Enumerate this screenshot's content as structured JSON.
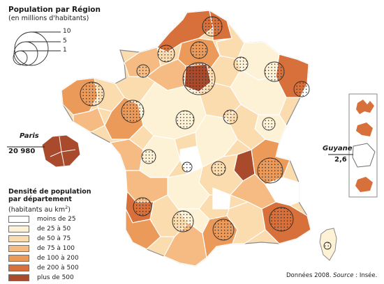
{
  "legend_population": {
    "title": "Population par Région",
    "subtitle": "(en millions d'habitants)",
    "sizes": [
      "10",
      "5",
      "1"
    ]
  },
  "legend_density": {
    "title_line1": "Densité de population",
    "title_line2": "par département",
    "subtitle_prefix": "(habitants au km",
    "subtitle_sup": "2",
    "subtitle_suffix": ")",
    "classes": [
      {
        "label": "moins de 25",
        "color": "#ffffff"
      },
      {
        "label": "de 25 à 50",
        "color": "#fdf1d6"
      },
      {
        "label": "de 50 à 75",
        "color": "#fbdcae"
      },
      {
        "label": "de 75 à 100",
        "color": "#f5bb82"
      },
      {
        "label": "de 100 à 200",
        "color": "#ec9a5a"
      },
      {
        "label": "de 200 à 500",
        "color": "#d7703a"
      },
      {
        "label": "plus de 500",
        "color": "#a84a2b"
      }
    ]
  },
  "paris_callout": {
    "name": "Paris",
    "value": "20 980"
  },
  "guyane_callout": {
    "name": "Guyane",
    "value": "2,6"
  },
  "source": {
    "prefix": "Données 2008. ",
    "italic": "Source",
    "suffix": " : Insée."
  },
  "icons": [
    "proportional-circle-icon",
    "dotted-pattern-icon"
  ]
}
